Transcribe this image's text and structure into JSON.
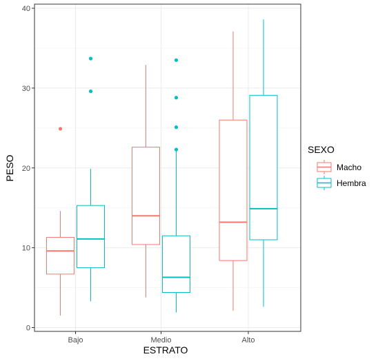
{
  "chart_data": {
    "type": "boxplot",
    "xlabel": "ESTRATO",
    "ylabel": "PESO",
    "categories": [
      "Bajo",
      "Medio",
      "Alto"
    ],
    "ylim": [
      0,
      40
    ],
    "yticks": [
      0,
      10,
      20,
      30,
      40
    ],
    "grid": true,
    "legend": {
      "title": "SEXO",
      "position": "right"
    },
    "series": [
      {
        "name": "Macho",
        "color": "#f8766d",
        "boxes": [
          {
            "category": "Bajo",
            "whisker_low": 1.5,
            "q1": 6.7,
            "median": 9.6,
            "q3": 11.3,
            "whisker_high": 14.6,
            "outliers": [
              24.9
            ]
          },
          {
            "category": "Medio",
            "whisker_low": 3.8,
            "q1": 10.4,
            "median": 14.0,
            "q3": 22.6,
            "whisker_high": 32.9,
            "outliers": []
          },
          {
            "category": "Alto",
            "whisker_low": 2.1,
            "q1": 8.4,
            "median": 13.2,
            "q3": 26.0,
            "whisker_high": 37.1,
            "outliers": []
          }
        ]
      },
      {
        "name": "Hembra",
        "color": "#00bfc4",
        "boxes": [
          {
            "category": "Bajo",
            "whisker_low": 3.3,
            "q1": 7.5,
            "median": 11.1,
            "q3": 15.3,
            "whisker_high": 19.9,
            "outliers": [
              29.6,
              33.7
            ]
          },
          {
            "category": "Medio",
            "whisker_low": 1.9,
            "q1": 4.4,
            "median": 6.3,
            "q3": 11.5,
            "whisker_high": 22.2,
            "outliers": [
              22.3,
              25.1,
              28.8,
              33.5
            ]
          },
          {
            "category": "Alto",
            "whisker_low": 2.6,
            "q1": 11.0,
            "median": 14.9,
            "q3": 29.1,
            "whisker_high": 38.6,
            "outliers": []
          }
        ]
      }
    ]
  }
}
